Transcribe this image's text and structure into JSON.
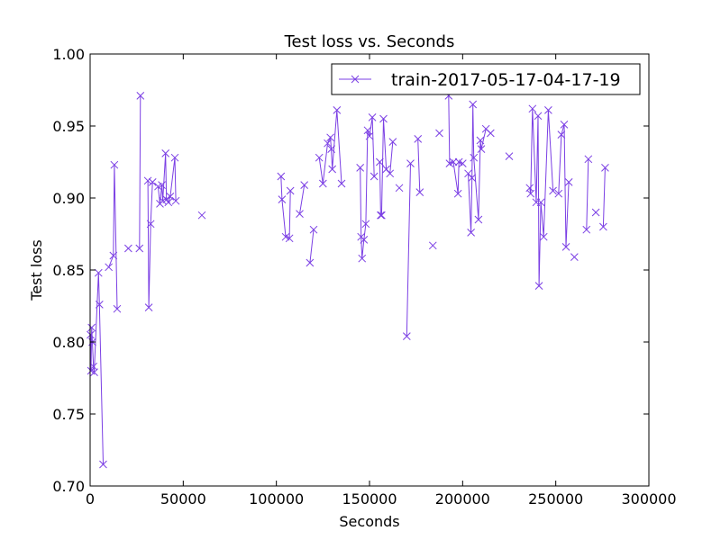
{
  "chart_data": {
    "type": "line",
    "title": "Test loss  vs. Seconds",
    "xlabel": "Seconds",
    "ylabel": "Test loss",
    "xlim": [
      0,
      300000
    ],
    "ylim": [
      0.7,
      1.0
    ],
    "x_ticks": [
      0,
      50000,
      100000,
      150000,
      200000,
      250000,
      300000
    ],
    "y_ticks": [
      0.7,
      0.75,
      0.8,
      0.85,
      0.9,
      0.95,
      1.0
    ],
    "x_tick_labels": [
      "0",
      "50000",
      "100000",
      "150000",
      "200000",
      "250000",
      "300000"
    ],
    "y_tick_labels": [
      "0.70",
      "0.75",
      "0.80",
      "0.85",
      "0.90",
      "0.95",
      "1.00"
    ],
    "legend_position": "top-right",
    "grid": false,
    "series": [
      {
        "name": "train-2017-05-17-04-17-19",
        "color": "#7b3fe4",
        "marker": "x",
        "points": [
          [
            200,
            0.805
          ],
          [
            500,
            0.78
          ],
          [
            800,
            0.81
          ],
          [
            1200,
            0.8
          ],
          [
            1800,
            0.783
          ],
          [
            2200,
            0.779
          ],
          [
            4500,
            0.848
          ],
          [
            5000,
            0.826
          ],
          [
            7000,
            0.715
          ],
          [
            10000,
            0.852
          ],
          [
            12500,
            0.86
          ],
          [
            13000,
            0.923
          ],
          [
            14500,
            0.823
          ],
          [
            20500,
            0.865
          ],
          [
            26500,
            0.865
          ],
          [
            27000,
            0.971
          ],
          [
            31000,
            0.912
          ],
          [
            31500,
            0.824
          ],
          [
            32500,
            0.882
          ],
          [
            33500,
            0.911
          ],
          [
            36500,
            0.908
          ],
          [
            37500,
            0.896
          ],
          [
            38500,
            0.909
          ],
          [
            39000,
            0.898
          ],
          [
            40500,
            0.931
          ],
          [
            41000,
            0.899
          ],
          [
            42000,
            0.897
          ],
          [
            43000,
            0.901
          ],
          [
            45500,
            0.928
          ],
          [
            46000,
            0.898
          ],
          [
            60000,
            0.888
          ],
          [
            102500,
            0.915
          ],
          [
            103000,
            0.899
          ],
          [
            105000,
            0.873
          ],
          [
            107000,
            0.872
          ],
          [
            107500,
            0.905
          ],
          [
            112500,
            0.889
          ],
          [
            115000,
            0.909
          ],
          [
            118000,
            0.855
          ],
          [
            120000,
            0.878
          ],
          [
            123000,
            0.928
          ],
          [
            125000,
            0.91
          ],
          [
            127500,
            0.938
          ],
          [
            129000,
            0.942
          ],
          [
            129500,
            0.934
          ],
          [
            130000,
            0.92
          ],
          [
            132500,
            0.961
          ],
          [
            135000,
            0.91
          ],
          [
            145000,
            0.921
          ],
          [
            145500,
            0.873
          ],
          [
            146000,
            0.858
          ],
          [
            147000,
            0.871
          ],
          [
            148000,
            0.882
          ],
          [
            149000,
            0.947
          ],
          [
            150000,
            0.943
          ],
          [
            151500,
            0.956
          ],
          [
            152500,
            0.915
          ],
          [
            155500,
            0.925
          ],
          [
            156000,
            0.888
          ],
          [
            156500,
            0.888
          ],
          [
            157500,
            0.955
          ],
          [
            159000,
            0.92
          ],
          [
            161000,
            0.917
          ],
          [
            162500,
            0.939
          ],
          [
            166000,
            0.907
          ],
          [
            170000,
            0.804
          ],
          [
            172000,
            0.924
          ],
          [
            176000,
            0.941
          ],
          [
            177000,
            0.904
          ],
          [
            184000,
            0.867
          ],
          [
            187500,
            0.945
          ],
          [
            192500,
            0.971
          ],
          [
            193000,
            0.924
          ],
          [
            195000,
            0.925
          ],
          [
            197500,
            0.903
          ],
          [
            198000,
            0.925
          ],
          [
            200000,
            0.924
          ],
          [
            203000,
            0.917
          ],
          [
            204500,
            0.876
          ],
          [
            205000,
            0.914
          ],
          [
            205500,
            0.965
          ],
          [
            206000,
            0.928
          ],
          [
            208500,
            0.885
          ],
          [
            209500,
            0.94
          ],
          [
            210000,
            0.934
          ],
          [
            212500,
            0.948
          ],
          [
            215000,
            0.945
          ],
          [
            225000,
            0.929
          ],
          [
            236000,
            0.907
          ],
          [
            236500,
            0.903
          ],
          [
            237500,
            0.962
          ],
          [
            239500,
            0.897
          ],
          [
            240500,
            0.957
          ],
          [
            241000,
            0.839
          ],
          [
            242000,
            0.897
          ],
          [
            243500,
            0.873
          ],
          [
            246000,
            0.961
          ],
          [
            248500,
            0.905
          ],
          [
            251500,
            0.903
          ],
          [
            253000,
            0.944
          ],
          [
            254500,
            0.951
          ],
          [
            255500,
            0.866
          ],
          [
            257000,
            0.911
          ],
          [
            260000,
            0.859
          ],
          [
            266500,
            0.878
          ],
          [
            267500,
            0.927
          ],
          [
            271500,
            0.89
          ],
          [
            275500,
            0.88
          ],
          [
            276500,
            0.921
          ]
        ]
      }
    ]
  }
}
